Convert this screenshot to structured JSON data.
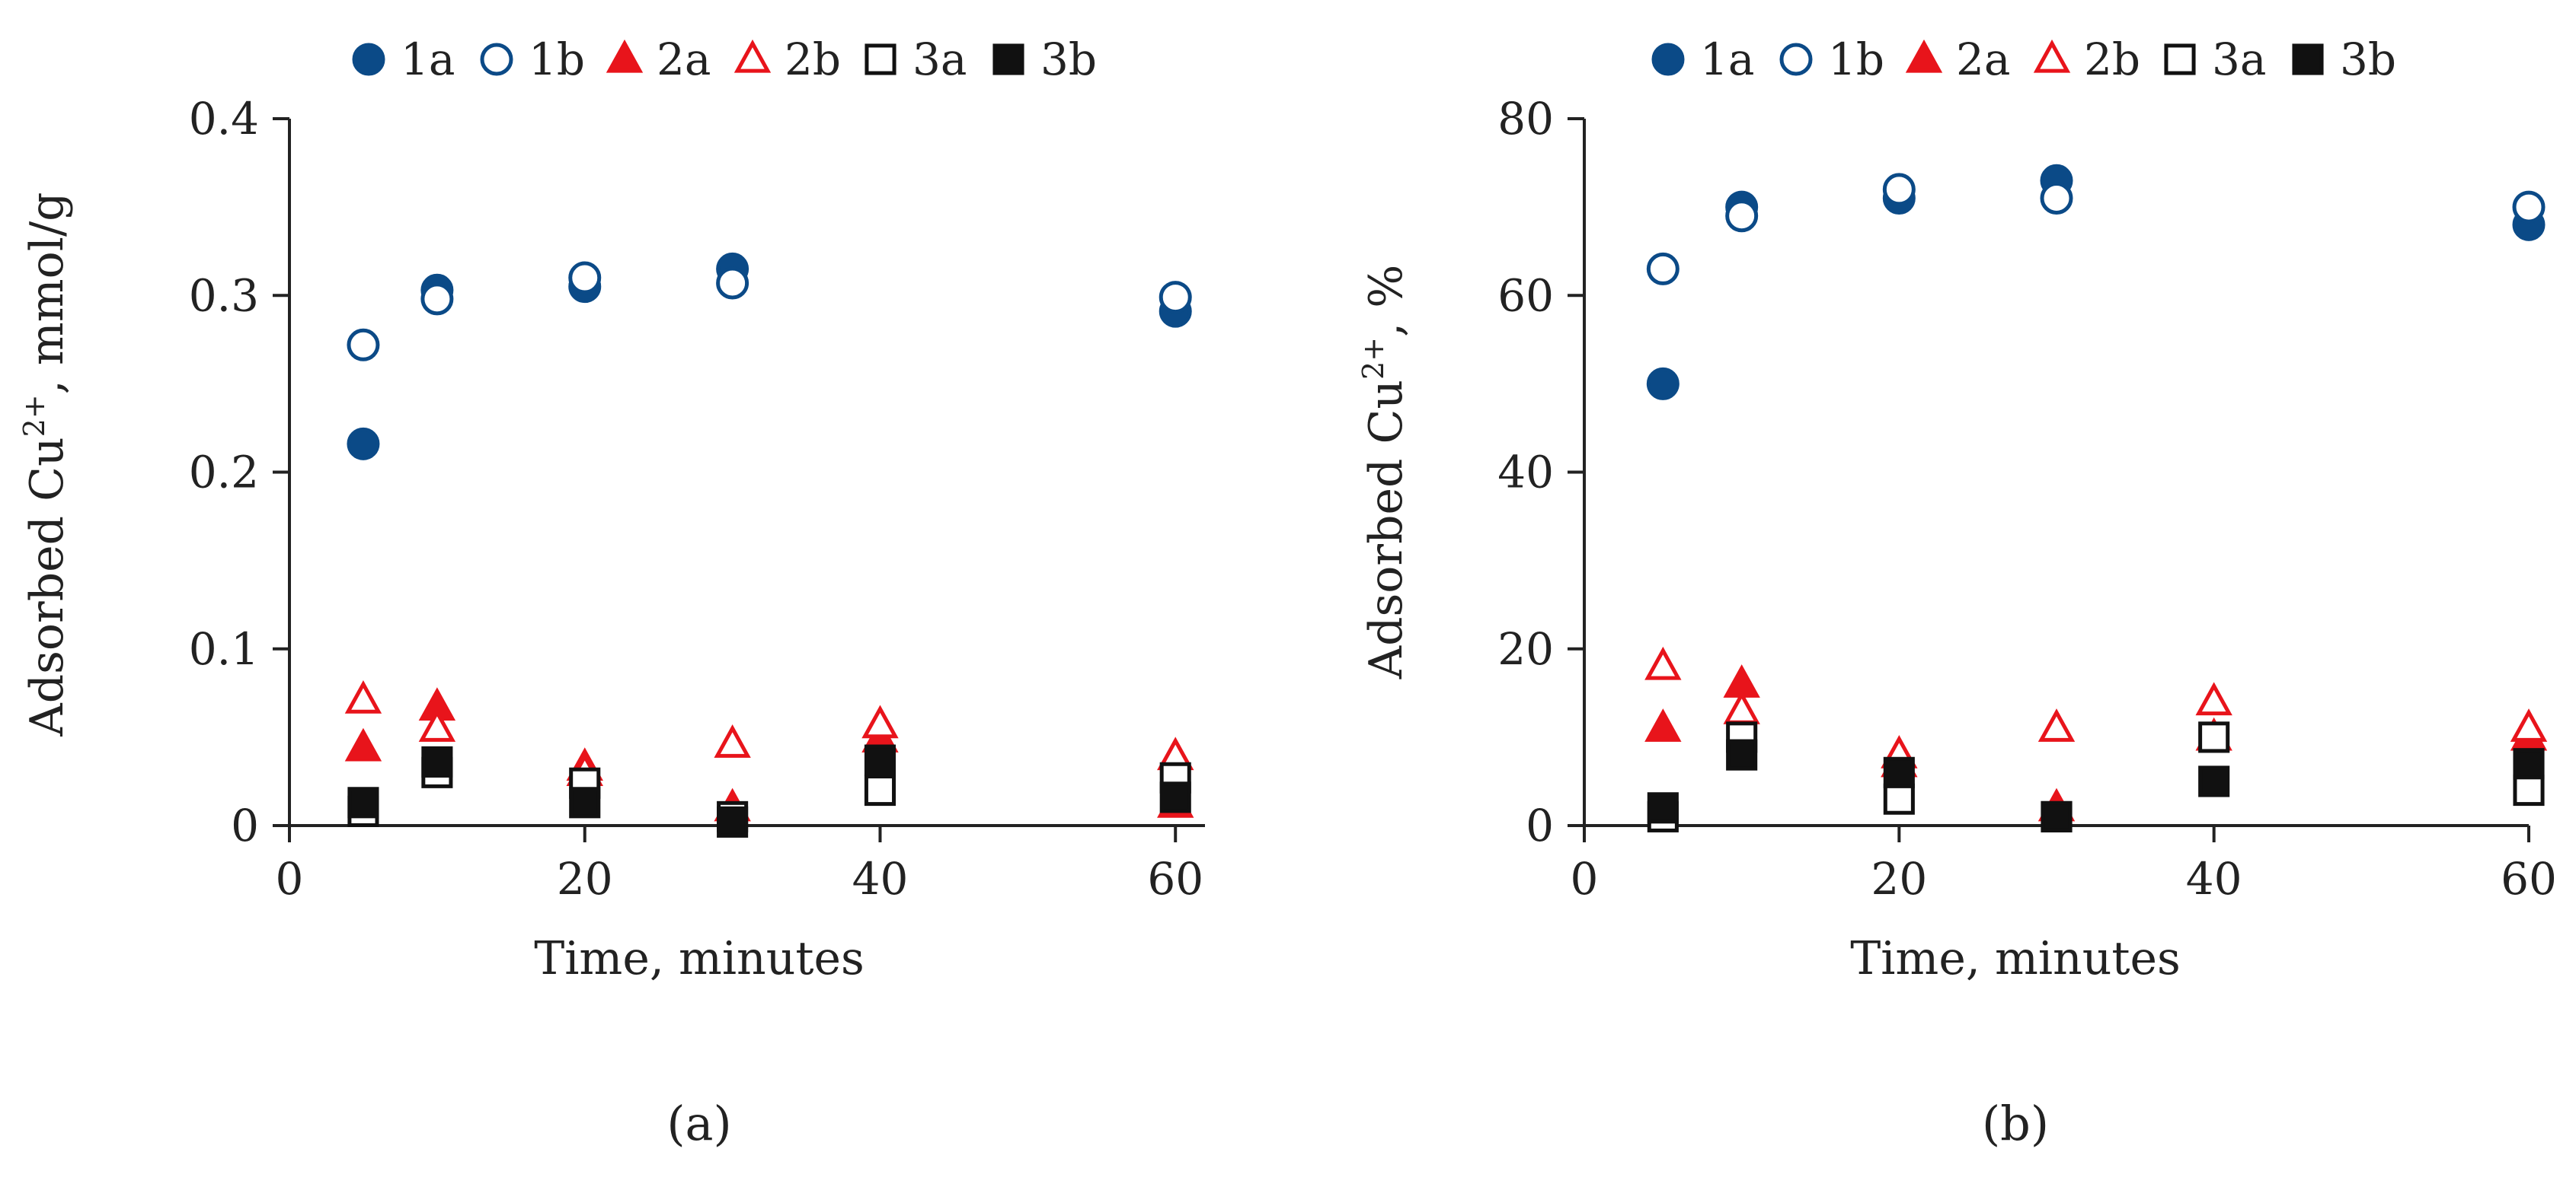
{
  "colors": {
    "blue": "#0b4a87",
    "red": "#e8141b",
    "black": "#111111",
    "axis": "#222222"
  },
  "legend": [
    {
      "label": "1a",
      "marker": "circle-filled"
    },
    {
      "label": "1b",
      "marker": "circle-open"
    },
    {
      "label": "2a",
      "marker": "triangle-filled"
    },
    {
      "label": "2b",
      "marker": "triangle-open"
    },
    {
      "label": "3a",
      "marker": "square-open"
    },
    {
      "label": "3b",
      "marker": "square-filled"
    }
  ],
  "chart_data": [
    {
      "type": "scatter",
      "panel_label": "(a)",
      "xlabel": "Time, minutes",
      "ylabel_main": "Adsorbed Cu",
      "ylabel_sup": "2+",
      "ylabel_tail": ", mmol/g",
      "xlim": [
        0,
        62
      ],
      "ylim": [
        0,
        0.4
      ],
      "xticks": [
        "0",
        "20",
        "40",
        "60"
      ],
      "xtick_values": [
        0,
        20,
        40,
        60
      ],
      "yticks": [
        "0",
        "0.1",
        "0.2",
        "0.3",
        "0.4"
      ],
      "ytick_values": [
        0,
        0.1,
        0.2,
        0.3,
        0.4
      ],
      "series": [
        {
          "name": "1a",
          "marker": "circle-filled",
          "x": [
            5,
            10,
            20,
            30,
            60
          ],
          "y": [
            0.216,
            0.303,
            0.305,
            0.315,
            0.291
          ]
        },
        {
          "name": "1b",
          "marker": "circle-open",
          "x": [
            5,
            10,
            20,
            30,
            60
          ],
          "y": [
            0.272,
            0.298,
            0.31,
            0.307,
            0.299
          ]
        },
        {
          "name": "2a",
          "marker": "triangle-filled",
          "x": [
            5,
            10,
            20,
            30,
            40,
            60
          ],
          "y": [
            0.044,
            0.067,
            0.033,
            0.01,
            0.049,
            0.012
          ]
        },
        {
          "name": "2b",
          "marker": "triangle-open",
          "x": [
            5,
            10,
            20,
            30,
            40,
            60
          ],
          "y": [
            0.071,
            0.055,
            0.03,
            0.046,
            0.057,
            0.039
          ]
        },
        {
          "name": "3a",
          "marker": "square-open",
          "x": [
            5,
            10,
            20,
            30,
            40,
            60
          ],
          "y": [
            0.008,
            0.03,
            0.024,
            0.005,
            0.02,
            0.027
          ]
        },
        {
          "name": "3b",
          "marker": "square-filled",
          "x": [
            5,
            10,
            20,
            30,
            40,
            60
          ],
          "y": [
            0.013,
            0.036,
            0.013,
            0.002,
            0.037,
            0.016
          ]
        }
      ]
    },
    {
      "type": "scatter",
      "panel_label": "(b)",
      "xlabel": "Time, minutes",
      "ylabel_main": "Adsorbed Cu",
      "ylabel_sup": "2+",
      "ylabel_tail": ", %",
      "xlim": [
        0,
        60
      ],
      "ylim": [
        0,
        80
      ],
      "xticks": [
        "0",
        "20",
        "40",
        "60"
      ],
      "xtick_values": [
        0,
        20,
        40,
        60
      ],
      "yticks": [
        "0",
        "20",
        "40",
        "60",
        "80"
      ],
      "ytick_values": [
        0,
        20,
        40,
        60,
        80
      ],
      "series": [
        {
          "name": "1a",
          "marker": "circle-filled",
          "x": [
            5,
            10,
            20,
            30,
            60
          ],
          "y": [
            50,
            70,
            71,
            73,
            68
          ]
        },
        {
          "name": "1b",
          "marker": "circle-open",
          "x": [
            5,
            10,
            20,
            30,
            60
          ],
          "y": [
            63,
            69,
            72,
            71,
            70
          ]
        },
        {
          "name": "2a",
          "marker": "triangle-filled",
          "x": [
            5,
            10,
            20,
            30,
            40,
            60
          ],
          "y": [
            11,
            16,
            7,
            2,
            10,
            10
          ]
        },
        {
          "name": "2b",
          "marker": "triangle-open",
          "x": [
            5,
            10,
            20,
            30,
            40,
            60
          ],
          "y": [
            18,
            13,
            8,
            11,
            14,
            11
          ]
        },
        {
          "name": "3a",
          "marker": "square-open",
          "x": [
            5,
            10,
            20,
            30,
            40,
            60
          ],
          "y": [
            1,
            10,
            3,
            1,
            10,
            4
          ]
        },
        {
          "name": "3b",
          "marker": "square-filled",
          "x": [
            5,
            10,
            20,
            30,
            40,
            60
          ],
          "y": [
            2,
            8,
            6,
            1,
            5,
            7
          ]
        }
      ]
    }
  ]
}
